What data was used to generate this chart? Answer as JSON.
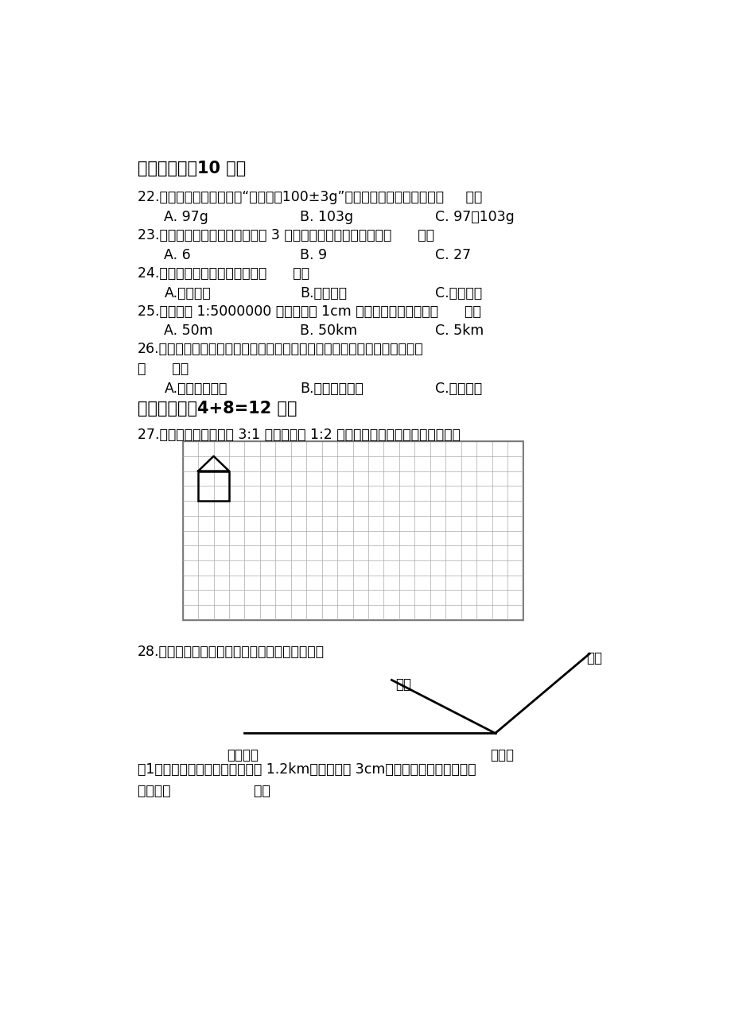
{
  "bg_color": "#ffffff",
  "title_section4": "四、选择。（10 分）",
  "q22": "22.某种饼干包装袋上显示“净含量：100±3g”，说明这袋饼干的质量是（     ）。",
  "q22_a": "A. 97g",
  "q22_b": "B. 103g",
  "q22_c": "C. 97～103g",
  "q23": "23.圆柱体的底面半径和高都扩大 3 倍，它的体积扩大的倍数是（      ）。",
  "q23_a": "A. 6",
  "q23_b": "B. 9",
  "q23_c": "C. 27",
  "q24": "24.和一定，加数与另一个加数（      ）。",
  "q24_a": "A.成正比例",
  "q24_b": "B.成反比例",
  "q24_c": "C.不成比例",
  "q25": "25.比例尺是 1:5000000 表示地图上 1cm 距离相当于实际距离（      ）。",
  "q25_a": "A. 50m",
  "q25_b": "B. 50km",
  "q25_c": "C. 5km",
  "q26_line1": "26.把一根正方体木料削成一个最大的圆柱，这个正方体的棱长相当于圆柱的",
  "q26_line2": "（      ）。",
  "q26_a": "A.底面半径或高",
  "q26_b": "B.高或底面直径",
  "q26_c": "C.底面周长",
  "title_section5": "五、操作。（4+8=12 分）",
  "q27": "27.把将方格中的图形按 3:1 放大，再按 1:2 缩小后的图形是怎样的？画一画。",
  "q28": "28.下面是孔明同学画的他家小区的简单示意图：",
  "q28_sub": "（1）孔明家到学校的实际距离是 1.2km，在图上是 3cm，那么这幅示意图画的比",
  "q28_sub2": "例尺是（                   ）。"
}
